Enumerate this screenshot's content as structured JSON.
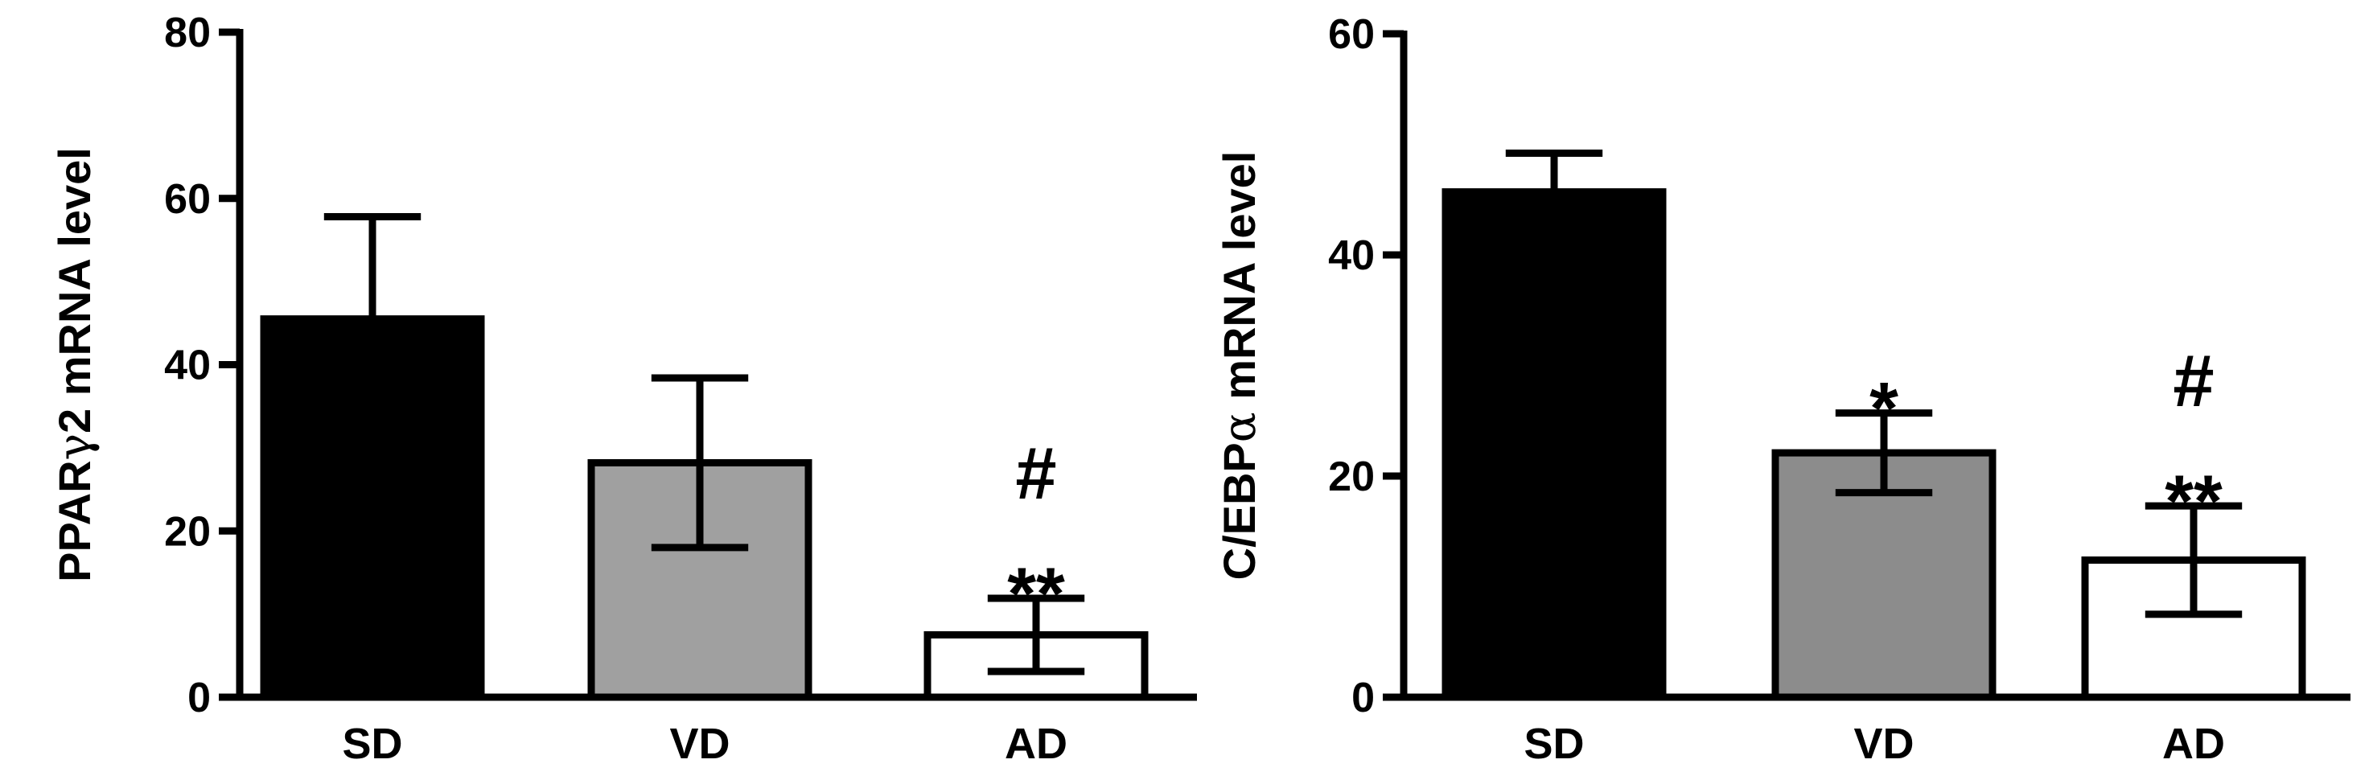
{
  "chart_data": [
    {
      "type": "bar",
      "categories": [
        "SD",
        "VD",
        "AD"
      ],
      "values": [
        45.5,
        28.2,
        7.5
      ],
      "errors": [
        12.3,
        10.2,
        4.4
      ],
      "colors": [
        "#000000",
        "#a0a0a0",
        "#ffffff"
      ],
      "ylabel_parts": [
        "PPAR",
        "γ",
        "2 mRNA level"
      ],
      "ylim": [
        0,
        80
      ],
      "yticks": [
        "0",
        "20",
        "40",
        "60",
        "80"
      ],
      "annotations": [
        {
          "category_index": 2,
          "lines": [
            "#",
            "**"
          ]
        }
      ]
    },
    {
      "type": "bar",
      "categories": [
        "SD",
        "VD",
        "AD"
      ],
      "values": [
        45.7,
        22.1,
        12.4
      ],
      "errors": [
        3.5,
        3.6,
        4.9
      ],
      "colors": [
        "#000000",
        "#8c8c8c",
        "#ffffff"
      ],
      "ylabel_parts": [
        "C/EBP",
        "α",
        " mRNA level"
      ],
      "ylim": [
        0,
        60
      ],
      "yticks": [
        "0",
        "20",
        "40",
        "60"
      ],
      "annotations": [
        {
          "category_index": 1,
          "lines": [
            "*"
          ]
        },
        {
          "category_index": 2,
          "lines": [
            "#",
            "**"
          ]
        }
      ]
    }
  ]
}
